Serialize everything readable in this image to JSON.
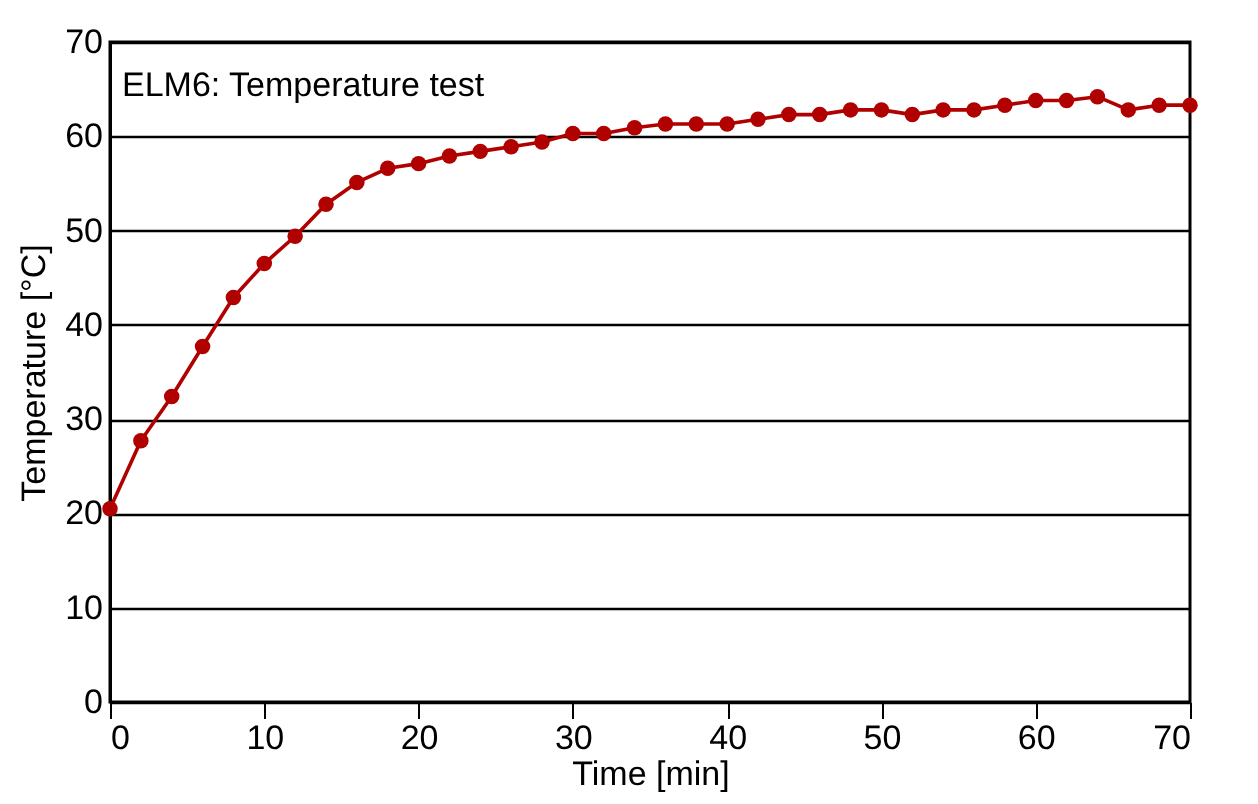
{
  "chart_data": {
    "type": "line",
    "title": "ELM6: Temperature test",
    "xlabel": "Time [min]",
    "ylabel": "Temperature [°C]",
    "x": [
      0,
      2,
      4,
      6,
      8,
      10,
      12,
      14,
      16,
      18,
      20,
      22,
      24,
      26,
      28,
      30,
      32,
      34,
      36,
      38,
      40,
      42,
      44,
      46,
      48,
      50,
      52,
      54,
      56,
      58,
      60,
      62,
      64,
      66,
      68,
      70
    ],
    "series": [
      {
        "color": "#b00000",
        "values": [
          20.5,
          27.7,
          32.4,
          37.7,
          42.9,
          46.5,
          49.4,
          52.8,
          55.1,
          56.6,
          57.1,
          57.9,
          58.4,
          58.9,
          59.4,
          60.3,
          60.3,
          60.9,
          61.3,
          61.3,
          61.3,
          61.8,
          62.3,
          62.3,
          62.8,
          62.8,
          62.3,
          62.8,
          62.8,
          63.3,
          63.8,
          63.8,
          64.2,
          62.8,
          63.3,
          63.3
        ]
      }
    ],
    "xlim": [
      0,
      70
    ],
    "xticks": [
      0,
      10,
      20,
      30,
      40,
      50,
      60,
      70
    ],
    "ylim": [
      0,
      70
    ],
    "yticks": [
      0,
      10,
      20,
      30,
      40,
      50,
      60,
      70
    ],
    "grid": "y",
    "marker": "circle",
    "line_style": "solid",
    "legend": false
  }
}
